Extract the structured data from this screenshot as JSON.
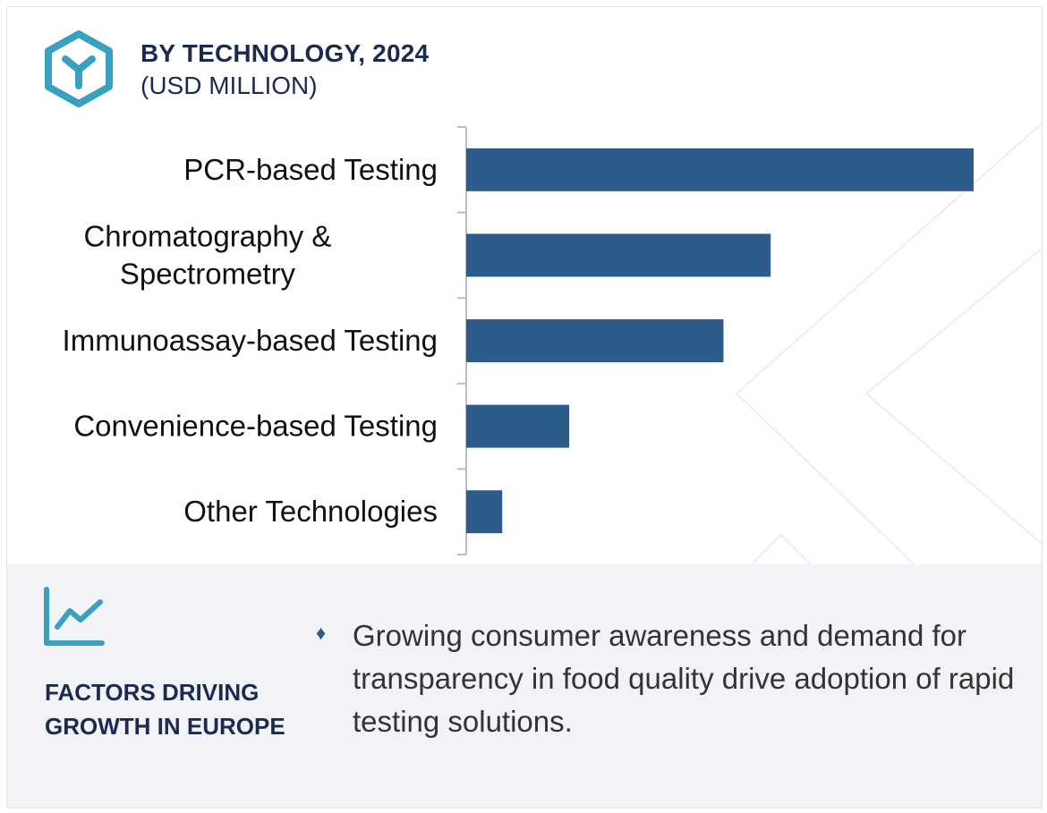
{
  "header": {
    "title": "BY TECHNOLOGY, 2024",
    "subtitle": "(USD MILLION)",
    "icon": "hexagon-y-icon"
  },
  "chart_data": {
    "type": "bar",
    "orientation": "horizontal",
    "categories": [
      [
        "PCR-based Testing"
      ],
      [
        "Chromatography &",
        "Spectrometry"
      ],
      [
        "Immunoassay-based Testing"
      ],
      [
        "Convenience-based Testing"
      ],
      [
        "Other Technologies"
      ]
    ],
    "values": [
      100,
      60,
      50.7,
      20.3,
      7.1
    ],
    "value_axis_visible": false,
    "bar_color": "#2d5b8a",
    "axis_color": "#b9bdc6"
  },
  "factors": {
    "icon": "trend-line-icon",
    "title": "FACTORS DRIVING GROWTH IN EUROPE",
    "bullets": [
      "Growing consumer awareness and demand for transparency in food quality drive adoption of rapid testing solutions."
    ]
  },
  "colors": {
    "navy": "#1b2a4e",
    "teal": "#3aa0bf",
    "bar": "#2d5b8a",
    "panel_bg": "#f2f3f7"
  }
}
